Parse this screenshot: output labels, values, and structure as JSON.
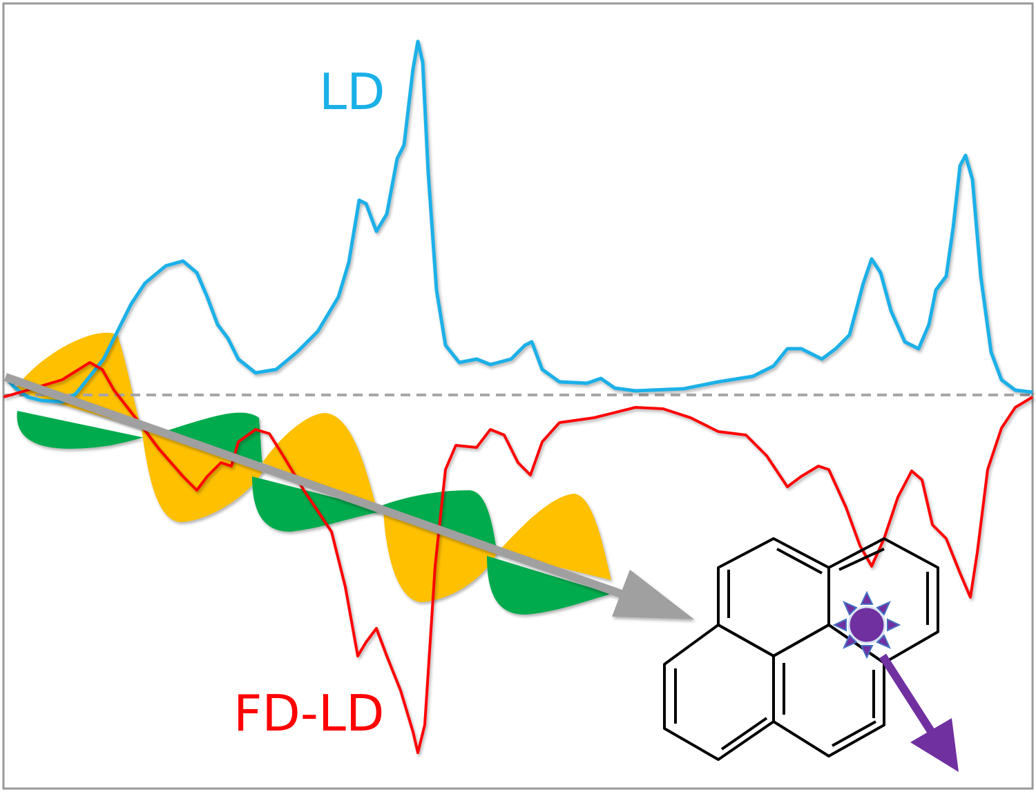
{
  "labels": {
    "ld": "LD",
    "fd_ld": "FD-LD"
  }
}
